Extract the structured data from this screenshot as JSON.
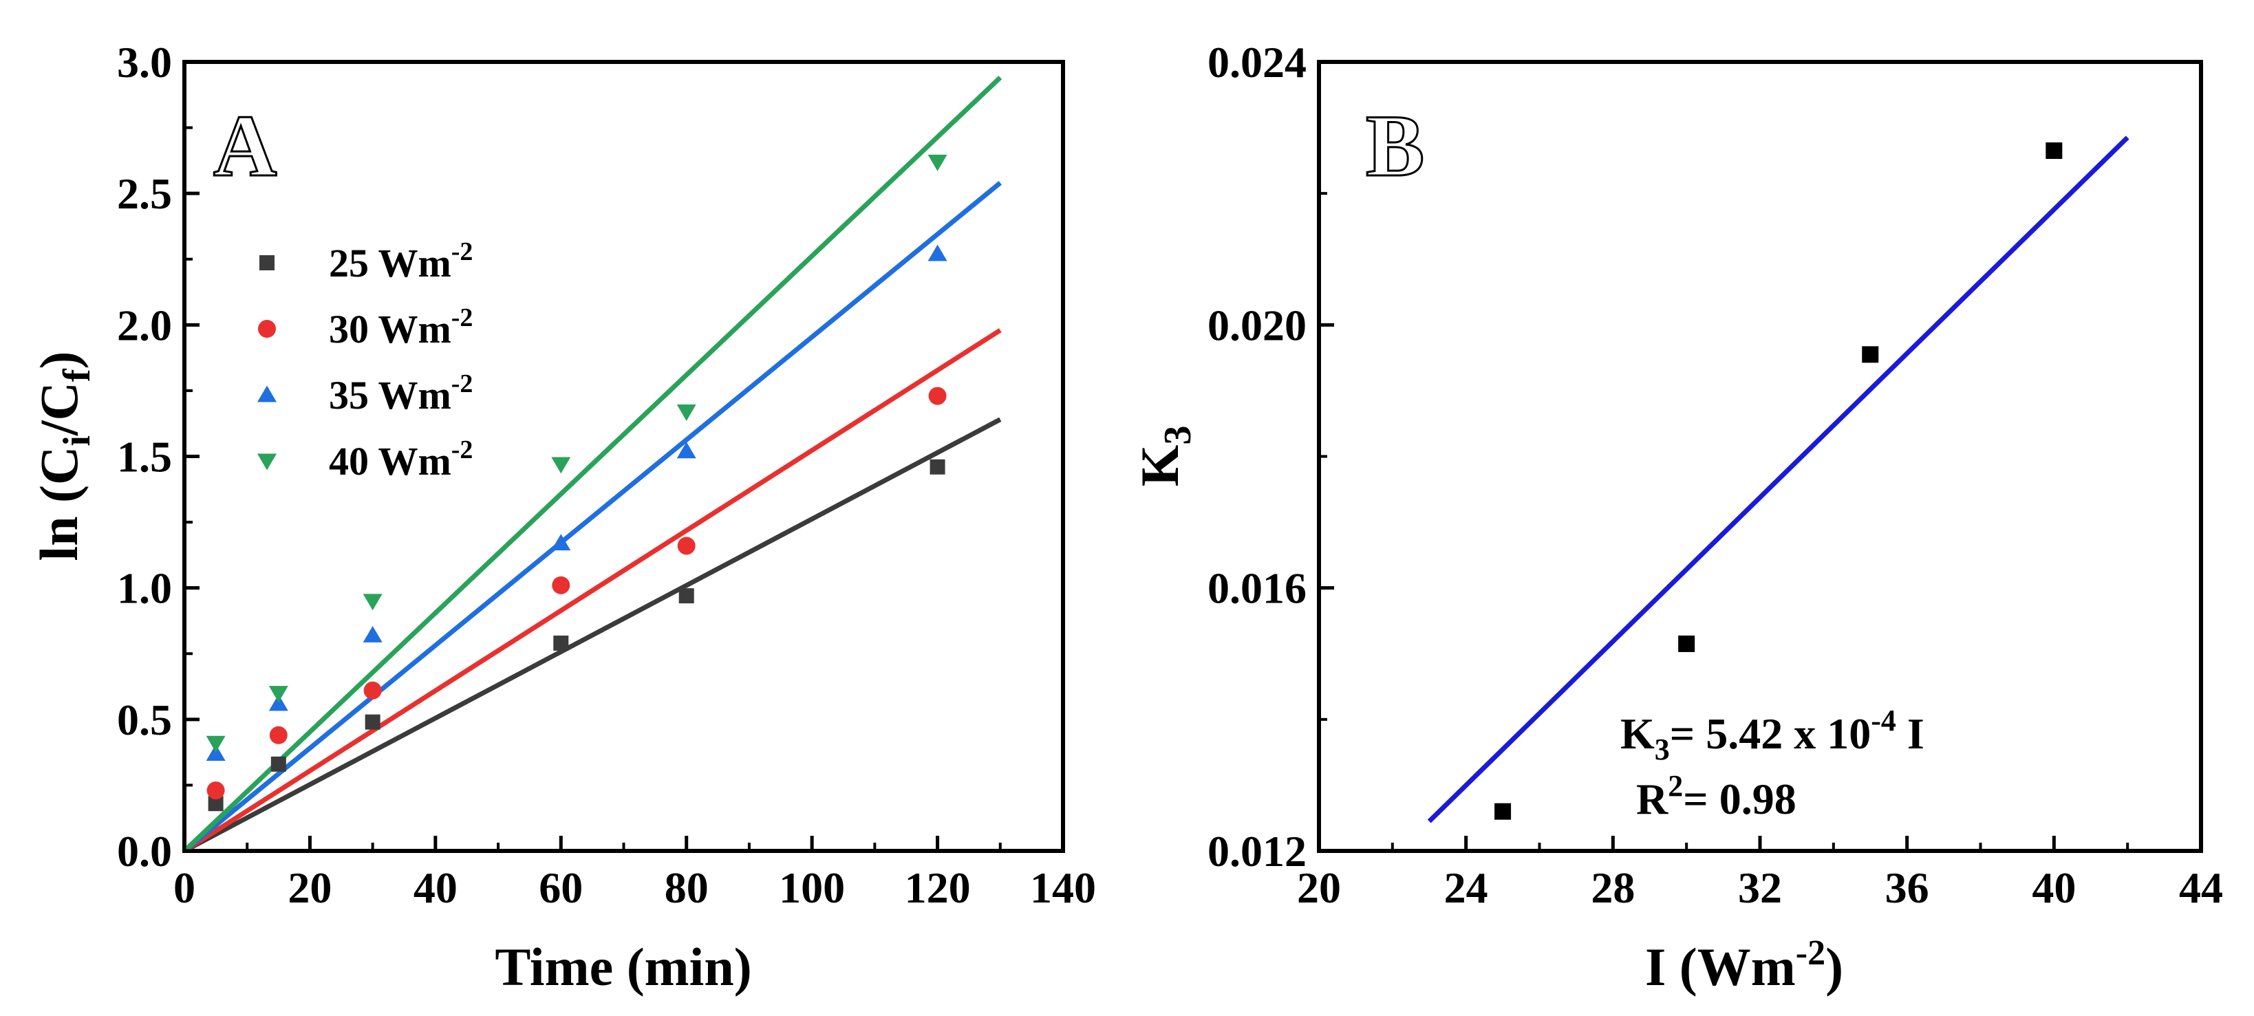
{
  "chart_data": [
    {
      "type": "scatter",
      "panel_label": "A",
      "title": "",
      "xlabel": "Time (min)",
      "ylabel": {
        "main": "ln (C",
        "sub1": "i",
        "mid": "/C",
        "sub2": "f",
        "end": ")"
      },
      "xlim": [
        0,
        140
      ],
      "ylim": [
        0,
        3.0
      ],
      "xticks": [
        0,
        20,
        40,
        60,
        80,
        100,
        120,
        140
      ],
      "yticks": [
        "0.0",
        "0.5",
        "1.0",
        "1.5",
        "2.0",
        "2.5",
        "3.0"
      ],
      "x": [
        5,
        15,
        30,
        60,
        80,
        120
      ],
      "legend_position": "upper-left",
      "series": [
        {
          "name": "25 Wm",
          "unit_exp": "-2",
          "marker": "square",
          "color": "#3b3b3b",
          "values": [
            0.18,
            0.33,
            0.49,
            0.79,
            0.97,
            1.46
          ],
          "fit_slope": 0.01262,
          "fit_x": [
            0,
            130
          ]
        },
        {
          "name": "30 Wm",
          "unit_exp": "-2",
          "marker": "circle",
          "color": "#e8312f",
          "values": [
            0.23,
            0.44,
            0.61,
            1.01,
            1.16,
            1.73
          ],
          "fit_slope": 0.01523,
          "fit_x": [
            0,
            130
          ]
        },
        {
          "name": "35 Wm",
          "unit_exp": "-2",
          "marker": "triangle-up",
          "color": "#1f6fe0",
          "values": [
            0.37,
            0.56,
            0.82,
            1.17,
            1.52,
            2.27
          ],
          "fit_slope": 0.01954,
          "fit_x": [
            0,
            130
          ]
        },
        {
          "name": "40 Wm",
          "unit_exp": "-2",
          "marker": "triangle-down",
          "color": "#2aa35a",
          "values": [
            0.41,
            0.6,
            0.95,
            1.47,
            1.67,
            2.62
          ],
          "fit_slope": 0.02262,
          "fit_x": [
            0,
            130
          ]
        }
      ]
    },
    {
      "type": "scatter",
      "panel_label": "B",
      "title": "",
      "xlabel": {
        "main": "I (Wm",
        "sup": "-2",
        "end": ")"
      },
      "ylabel": {
        "main": "K",
        "sub": "3"
      },
      "xlim": [
        20,
        44
      ],
      "ylim": [
        0.012,
        0.024
      ],
      "xticks": [
        20,
        24,
        28,
        32,
        36,
        40,
        44
      ],
      "yticks": [
        "0.012",
        "0.016",
        "0.020",
        "0.024"
      ],
      "series": [
        {
          "name": "K3",
          "marker": "square",
          "color": "#000000",
          "x": [
            25,
            30,
            35,
            40
          ],
          "values": [
            0.0126,
            0.01515,
            0.01955,
            0.02265
          ]
        }
      ],
      "fit_line": {
        "color": "#1a1adb",
        "x": [
          23,
          42
        ],
        "y": [
          0.01245,
          0.02285
        ]
      },
      "equation": {
        "pre": "K",
        "sub": "3",
        "mid": "= 5.42 x 10",
        "sup": "-4",
        "post": " I"
      },
      "r_squared": {
        "pre": "R",
        "sup": "2",
        "post": "= 0.98"
      }
    }
  ]
}
